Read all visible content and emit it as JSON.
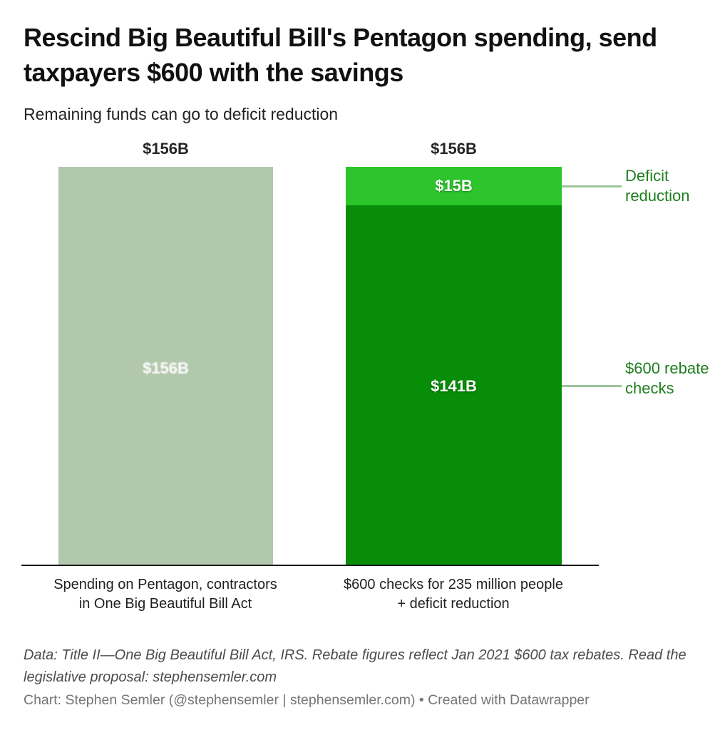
{
  "header": {
    "title": "Rescind Big Beautiful Bill's Pentagon spending, send taxpayers $600 with the savings",
    "subtitle": "Remaining funds can go to deficit reduction"
  },
  "chart_data": {
    "type": "bar",
    "stacked": true,
    "orientation": "vertical",
    "unit": "USD billions",
    "ylim": [
      0,
      156
    ],
    "grid": false,
    "legend": "none",
    "categories": [
      "Spending on Pentagon, contractors in One Big Beautiful Bill Act",
      "$600 checks for 235 million people + deficit reduction"
    ],
    "bars": [
      {
        "total_label": "$156B",
        "total_value": 156,
        "category_lines": [
          "Spending on Pentagon, contractors",
          "in One Big Beautiful Bill Act"
        ],
        "segments": [
          {
            "name": "Pentagon spending",
            "label": "$156B",
            "value": 156,
            "color": "#b2c8ac"
          }
        ]
      },
      {
        "total_label": "$156B",
        "total_value": 156,
        "category_lines": [
          "$600 checks for 235 million people",
          "+ deficit reduction"
        ],
        "segments": [
          {
            "name": "Deficit reduction",
            "label": "$15B",
            "value": 15,
            "color": "#2cc52c",
            "annotation": "Deficit reduction"
          },
          {
            "name": "$600 rebate checks",
            "label": "$141B",
            "value": 141,
            "color": "#078d07",
            "annotation": "$600 rebate checks"
          }
        ]
      }
    ],
    "annotation_color": "#1e7e1e",
    "connector_color": "#9cc49c",
    "axis_color": "#1a1a1a"
  },
  "footer": {
    "note": "Data: Title II—One Big Beautiful Bill Act, IRS. Rebate figures reflect Jan 2021 $600 tax rebates. Read the legislative proposal: stephensemler.com",
    "byline": "Chart: Stephen Semler (@stephensemler | stephensemler.com) • Created with Datawrapper"
  }
}
